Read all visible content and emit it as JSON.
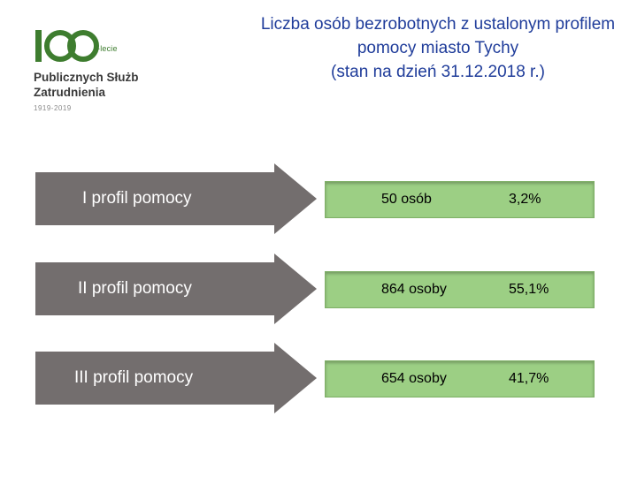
{
  "logo": {
    "number": "100",
    "suffix": "-lecie",
    "line1": "Publicznych Służb",
    "line2": "Zatrudnienia",
    "years": "1919-2019",
    "colors": {
      "green": "#3e7d2f",
      "text": "#3a3a3a"
    }
  },
  "title": {
    "lines": [
      "Liczba osób bezrobotnych z ustalonym profilem",
      "pomocy miasto Tychy",
      "(stan na dzień 31.12.2018 r.)"
    ],
    "color": "#1f3c9a"
  },
  "rows": [
    {
      "label": "I profil pomocy",
      "count": "50 osób",
      "percent": "3,2%"
    },
    {
      "label": "II profil pomocy",
      "count": "864 osoby",
      "percent": "55,1%"
    },
    {
      "label": "III profil pomocy",
      "count": "654 osoby",
      "percent": "41,7%"
    }
  ],
  "colors": {
    "arrow": "#736e6e",
    "box": "#9ccf84"
  }
}
